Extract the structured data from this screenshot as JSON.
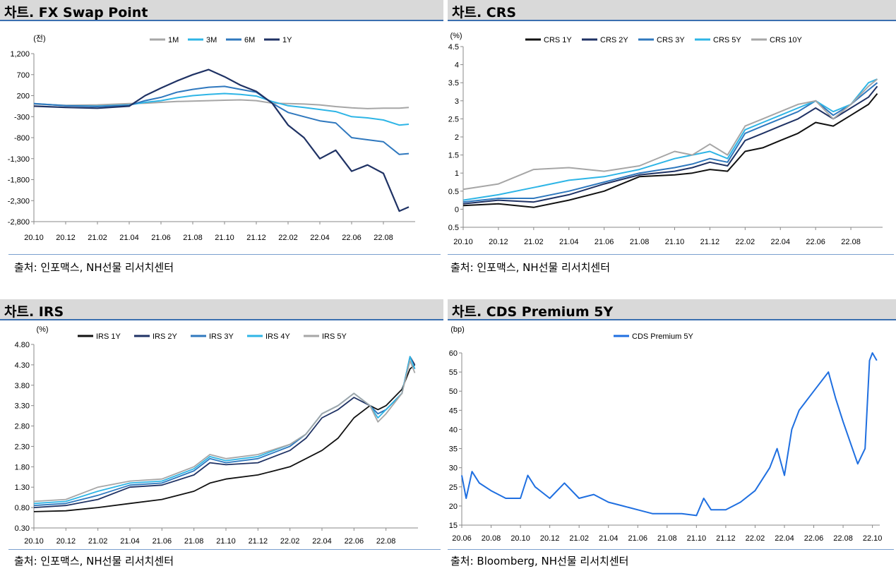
{
  "panels": [
    {
      "title": "차트. FX Swap Point",
      "source": "출처: 인포맥스, NH선물 리서치센터"
    },
    {
      "title": "차트. CRS",
      "source": "출처: 인포맥스, NH선물 리서치센터"
    },
    {
      "title": "차트. IRS",
      "source": "출처: 인포맥스, NH선물 리서치센터"
    },
    {
      "title": "차트. CDS Premium 5Y",
      "source": "출처: Bloomberg, NH선물 리서치센터"
    }
  ],
  "chart_data": [
    {
      "type": "line",
      "unit": "(전)",
      "ylim": [
        -2800,
        1200
      ],
      "yticks": [
        1200,
        700,
        200,
        -300,
        -800,
        -1300,
        -1800,
        -2300,
        -2800
      ],
      "ytick_labels": [
        "1,200",
        "700",
        "200",
        "-300",
        "-800",
        "-1,300",
        "-1,800",
        "-2,300",
        "-2,800"
      ],
      "xlim": [
        0,
        24
      ],
      "x_ticks": [
        0,
        2,
        4,
        6,
        8,
        10,
        12,
        14,
        16,
        18,
        20,
        22
      ],
      "x_tick_labels": [
        "20.10",
        "20.12",
        "21.02",
        "21.04",
        "21.06",
        "21.08",
        "21.10",
        "21.12",
        "22.02",
        "22.04",
        "22.06",
        "22.08"
      ],
      "legend_position": "top-center",
      "grid": false,
      "series": [
        {
          "name": "1M",
          "color": "#a6a6a6",
          "x": [
            0,
            2,
            4,
            6,
            7,
            8,
            9,
            10,
            11,
            12,
            13,
            14,
            15,
            16,
            17,
            18,
            19,
            20,
            21,
            22,
            23,
            23.6
          ],
          "y": [
            0,
            -30,
            -20,
            10,
            20,
            40,
            60,
            70,
            80,
            90,
            100,
            80,
            20,
            10,
            0,
            -20,
            -60,
            -90,
            -110,
            -100,
            -100,
            -80
          ]
        },
        {
          "name": "3M",
          "color": "#2eb5e6",
          "x": [
            0,
            2,
            4,
            6,
            7,
            8,
            9,
            10,
            11,
            12,
            13,
            14,
            15,
            16,
            17,
            18,
            19,
            20,
            21,
            22,
            23,
            23.6
          ],
          "y": [
            10,
            -40,
            -50,
            -20,
            40,
            80,
            150,
            200,
            230,
            250,
            230,
            190,
            60,
            -40,
            -80,
            -130,
            -180,
            -300,
            -330,
            -380,
            -500,
            -480
          ]
        },
        {
          "name": "6M",
          "color": "#2f78be",
          "x": [
            0,
            2,
            4,
            6,
            7,
            8,
            9,
            10,
            11,
            12,
            13,
            14,
            15,
            16,
            17,
            18,
            19,
            20,
            21,
            22,
            23,
            23.6
          ],
          "y": [
            10,
            -40,
            -60,
            -30,
            80,
            160,
            280,
            350,
            400,
            420,
            350,
            280,
            20,
            -200,
            -300,
            -400,
            -450,
            -800,
            -850,
            -900,
            -1200,
            -1180
          ]
        },
        {
          "name": "1Y",
          "color": "#1f3264",
          "x": [
            0,
            2,
            4,
            6,
            7,
            8,
            9,
            10,
            11,
            12,
            13,
            14,
            15,
            16,
            17,
            18,
            19,
            20,
            21,
            22,
            23,
            23.6
          ],
          "y": [
            -50,
            -80,
            -100,
            -50,
            200,
            380,
            550,
            700,
            820,
            650,
            450,
            300,
            20,
            -500,
            -800,
            -1300,
            -1100,
            -1600,
            -1450,
            -1650,
            -2550,
            -2450
          ]
        }
      ]
    },
    {
      "type": "line",
      "unit": "(%)",
      "ylim": [
        -0.5,
        4.5
      ],
      "yticks": [
        4.5,
        4,
        3.5,
        3,
        2.5,
        2,
        1.5,
        1,
        0.5,
        0,
        -0.5
      ],
      "ytick_labels": [
        "4.5",
        "4",
        "3.5",
        "3",
        "2.5",
        "2",
        "1.5",
        "1",
        "0.5",
        "0",
        "-0.5"
      ],
      "xlim": [
        0,
        23.8
      ],
      "x_ticks": [
        0,
        2,
        4,
        6,
        8,
        10,
        12,
        14,
        16,
        18,
        20,
        22
      ],
      "x_tick_labels": [
        "20.10",
        "20.12",
        "21.02",
        "21.04",
        "21.06",
        "21.08",
        "21.10",
        "21.12",
        "22.02",
        "22.04",
        "22.06",
        "22.08"
      ],
      "legend_position": "top-center",
      "grid": false,
      "series": [
        {
          "name": "CRS 1Y",
          "color": "#111111",
          "x": [
            0,
            2,
            4,
            6,
            8,
            10,
            12,
            13,
            14,
            15,
            16,
            17,
            18,
            19,
            20,
            21,
            22,
            23,
            23.5
          ],
          "y": [
            0.1,
            0.15,
            0.05,
            0.25,
            0.5,
            0.9,
            0.95,
            1.0,
            1.1,
            1.05,
            1.6,
            1.7,
            1.9,
            2.1,
            2.4,
            2.3,
            2.6,
            2.9,
            3.2
          ]
        },
        {
          "name": "CRS 2Y",
          "color": "#1f3264",
          "x": [
            0,
            2,
            4,
            6,
            8,
            10,
            12,
            13,
            14,
            15,
            16,
            17,
            18,
            19,
            20,
            21,
            22,
            23,
            23.5
          ],
          "y": [
            0.15,
            0.25,
            0.2,
            0.4,
            0.7,
            0.95,
            1.05,
            1.15,
            1.3,
            1.2,
            1.9,
            2.1,
            2.3,
            2.5,
            2.8,
            2.5,
            2.8,
            3.1,
            3.4
          ]
        },
        {
          "name": "CRS 3Y",
          "color": "#2f78be",
          "x": [
            0,
            2,
            4,
            6,
            8,
            10,
            12,
            13,
            14,
            15,
            16,
            17,
            18,
            19,
            20,
            21,
            22,
            23,
            23.5
          ],
          "y": [
            0.2,
            0.3,
            0.3,
            0.5,
            0.75,
            1.0,
            1.15,
            1.25,
            1.4,
            1.3,
            2.1,
            2.3,
            2.5,
            2.7,
            3.0,
            2.6,
            2.9,
            3.3,
            3.5
          ]
        },
        {
          "name": "CRS 5Y",
          "color": "#2eb5e6",
          "x": [
            0,
            2,
            4,
            6,
            8,
            10,
            12,
            13,
            14,
            15,
            16,
            17,
            18,
            19,
            20,
            21,
            22,
            23,
            23.5
          ],
          "y": [
            0.25,
            0.4,
            0.6,
            0.8,
            0.9,
            1.1,
            1.4,
            1.5,
            1.6,
            1.4,
            2.2,
            2.4,
            2.6,
            2.8,
            3.0,
            2.7,
            2.9,
            3.5,
            3.6
          ]
        },
        {
          "name": "CRS 10Y",
          "color": "#a6a6a6",
          "x": [
            0,
            2,
            4,
            6,
            8,
            10,
            12,
            13,
            14,
            15,
            16,
            17,
            18,
            19,
            20,
            21,
            22,
            23,
            23.5
          ],
          "y": [
            0.55,
            0.7,
            1.1,
            1.15,
            1.05,
            1.2,
            1.6,
            1.5,
            1.8,
            1.5,
            2.3,
            2.5,
            2.7,
            2.9,
            3.0,
            2.5,
            2.9,
            3.4,
            3.6
          ]
        }
      ]
    },
    {
      "type": "line",
      "unit": "(%)",
      "ylim": [
        0.3,
        4.8
      ],
      "yticks": [
        4.8,
        4.3,
        3.8,
        3.3,
        2.8,
        2.3,
        1.8,
        1.3,
        0.8,
        0.3
      ],
      "ytick_labels": [
        "4.80",
        "4.30",
        "3.80",
        "3.30",
        "2.80",
        "2.30",
        "1.80",
        "1.30",
        "0.80",
        "0.30"
      ],
      "xlim": [
        0,
        24
      ],
      "x_ticks": [
        0,
        2,
        4,
        6,
        8,
        10,
        12,
        14,
        16,
        18,
        20,
        22
      ],
      "x_tick_labels": [
        "20.10",
        "20.12",
        "21.02",
        "21.04",
        "21.06",
        "21.08",
        "21.10",
        "21.12",
        "22.02",
        "22.04",
        "22.06",
        "22.08"
      ],
      "legend_position": "top-center",
      "grid": false,
      "series": [
        {
          "name": "IRS 1Y",
          "color": "#111111",
          "x": [
            0,
            2,
            4,
            6,
            8,
            10,
            11,
            12,
            14,
            16,
            17,
            18,
            19,
            20,
            21,
            21.5,
            22,
            23,
            23.5,
            23.8
          ],
          "y": [
            0.7,
            0.72,
            0.8,
            0.9,
            1.0,
            1.2,
            1.4,
            1.5,
            1.6,
            1.8,
            2.0,
            2.2,
            2.5,
            3.0,
            3.3,
            3.2,
            3.3,
            3.7,
            4.2,
            4.3
          ]
        },
        {
          "name": "IRS 2Y",
          "color": "#1f3264",
          "x": [
            0,
            2,
            4,
            6,
            8,
            10,
            11,
            12,
            14,
            16,
            17,
            18,
            19,
            20,
            21,
            21.5,
            22,
            23,
            23.5,
            23.8
          ],
          "y": [
            0.8,
            0.85,
            1.0,
            1.3,
            1.35,
            1.6,
            1.9,
            1.85,
            1.9,
            2.2,
            2.5,
            3.0,
            3.2,
            3.5,
            3.3,
            3.1,
            3.2,
            3.6,
            4.5,
            4.3
          ]
        },
        {
          "name": "IRS 3Y",
          "color": "#2f78be",
          "x": [
            0,
            2,
            4,
            6,
            8,
            10,
            11,
            12,
            14,
            16,
            17,
            18,
            19,
            20,
            21,
            21.5,
            22,
            23,
            23.5,
            23.8
          ],
          "y": [
            0.85,
            0.9,
            1.1,
            1.35,
            1.4,
            1.7,
            2.0,
            1.9,
            2.0,
            2.3,
            2.6,
            3.1,
            3.3,
            3.6,
            3.3,
            3.1,
            3.2,
            3.6,
            4.5,
            4.2
          ]
        },
        {
          "name": "IRS 4Y",
          "color": "#2eb5e6",
          "x": [
            0,
            2,
            4,
            6,
            8,
            10,
            11,
            12,
            14,
            16,
            17,
            18,
            19,
            20,
            21,
            21.5,
            22,
            23,
            23.5,
            23.8
          ],
          "y": [
            0.9,
            0.95,
            1.2,
            1.4,
            1.45,
            1.75,
            2.05,
            1.95,
            2.05,
            2.35,
            2.6,
            3.1,
            3.3,
            3.6,
            3.3,
            3.0,
            3.2,
            3.6,
            4.5,
            4.2
          ]
        },
        {
          "name": "IRS 5Y",
          "color": "#a6a6a6",
          "x": [
            0,
            2,
            4,
            6,
            8,
            10,
            11,
            12,
            14,
            16,
            17,
            18,
            19,
            20,
            21,
            21.5,
            22,
            23,
            23.5,
            23.8
          ],
          "y": [
            0.95,
            1.0,
            1.3,
            1.45,
            1.5,
            1.8,
            2.1,
            2.0,
            2.1,
            2.35,
            2.6,
            3.1,
            3.3,
            3.6,
            3.3,
            2.9,
            3.1,
            3.6,
            4.4,
            4.1
          ]
        }
      ]
    },
    {
      "type": "line",
      "unit": "(bp)",
      "ylim": [
        15,
        60
      ],
      "yticks": [
        60,
        55,
        50,
        45,
        40,
        35,
        30,
        25,
        20,
        15
      ],
      "ytick_labels": [
        "60",
        "55",
        "50",
        "45",
        "40",
        "35",
        "30",
        "25",
        "20",
        "15"
      ],
      "xlim": [
        0,
        28.5
      ],
      "x_ticks": [
        0,
        2,
        4,
        6,
        8,
        10,
        12,
        14,
        16,
        18,
        20,
        22,
        24,
        26,
        28
      ],
      "x_tick_labels": [
        "20.06",
        "20.08",
        "20.10",
        "20.12",
        "21.02",
        "21.04",
        "21.06",
        "21.08",
        "21.10",
        "21.12",
        "22.02",
        "22.04",
        "22.06",
        "22.08",
        "22.10"
      ],
      "legend_position": "top-center",
      "grid": false,
      "series": [
        {
          "name": "CDS Premium 5Y",
          "color": "#1f6fe0",
          "x": [
            0,
            0.3,
            0.7,
            1.2,
            2,
            3,
            4,
            4.5,
            5,
            6,
            7,
            8,
            9,
            10,
            11,
            12,
            13,
            14,
            15,
            16,
            16.5,
            17,
            18,
            19,
            20,
            21,
            21.5,
            22,
            22.5,
            23,
            24,
            25,
            25.5,
            26,
            27,
            27.5,
            27.8,
            28,
            28.3
          ],
          "y": [
            28,
            22,
            29,
            26,
            24,
            22,
            22,
            28,
            25,
            22,
            26,
            22,
            23,
            21,
            20,
            19,
            18,
            18,
            18,
            17.5,
            22,
            19,
            19,
            21,
            24,
            30,
            35,
            28,
            40,
            45,
            50,
            55,
            48,
            42,
            31,
            35,
            58,
            60,
            58
          ]
        }
      ]
    }
  ]
}
